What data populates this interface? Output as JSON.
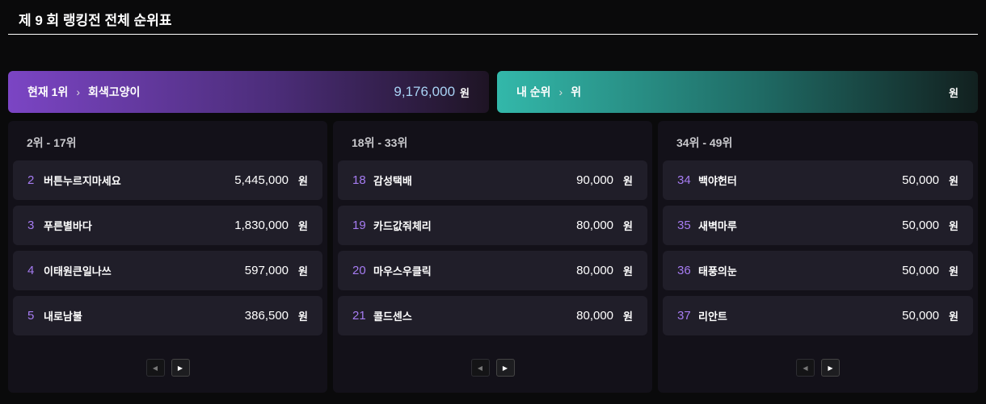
{
  "title": "제 9 회 랭킹전 전체 순위표",
  "top": {
    "label": "현재 1위",
    "name": "회색고양이",
    "amount": "9,176,000",
    "unit": "원"
  },
  "mine": {
    "label": "내 순위",
    "rank": "위",
    "amount": "",
    "unit": "원"
  },
  "columns": [
    {
      "header": "2위 - 17위",
      "rows": [
        {
          "rank": "2",
          "name": "버튼누르지마세요",
          "amount": "5,445,000",
          "unit": "원"
        },
        {
          "rank": "3",
          "name": "푸른별바다",
          "amount": "1,830,000",
          "unit": "원"
        },
        {
          "rank": "4",
          "name": "이태원큰일나쓰",
          "amount": "597,000",
          "unit": "원"
        },
        {
          "rank": "5",
          "name": "내로남불",
          "amount": "386,500",
          "unit": "원"
        }
      ]
    },
    {
      "header": "18위 - 33위",
      "rows": [
        {
          "rank": "18",
          "name": "감성택배",
          "amount": "90,000",
          "unit": "원"
        },
        {
          "rank": "19",
          "name": "카드값줘체리",
          "amount": "80,000",
          "unit": "원"
        },
        {
          "rank": "20",
          "name": "마우스우클릭",
          "amount": "80,000",
          "unit": "원"
        },
        {
          "rank": "21",
          "name": "콜드센스",
          "amount": "80,000",
          "unit": "원"
        }
      ]
    },
    {
      "header": "34위 - 49위",
      "rows": [
        {
          "rank": "34",
          "name": "백야헌터",
          "amount": "50,000",
          "unit": "원"
        },
        {
          "rank": "35",
          "name": "새벽마루",
          "amount": "50,000",
          "unit": "원"
        },
        {
          "rank": "36",
          "name": "태풍의눈",
          "amount": "50,000",
          "unit": "원"
        },
        {
          "rank": "37",
          "name": "리안트",
          "amount": "50,000",
          "unit": "원"
        }
      ]
    }
  ],
  "pager": {
    "prev": "◀",
    "next": "▶"
  },
  "colors": {
    "accent": "#a67cf2",
    "top_gradient": "#7b45c4",
    "mine_gradient": "#33b8aa"
  }
}
